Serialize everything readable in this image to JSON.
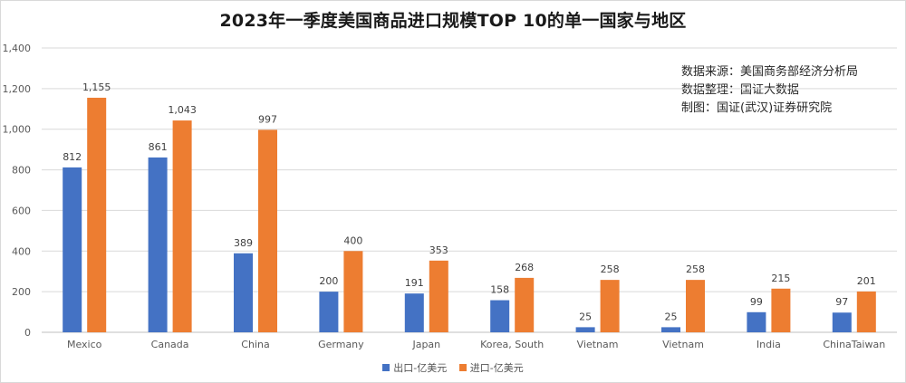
{
  "title": "2023年一季度美国商品进口规模TOP 10的单一国家与地区",
  "source_lines": [
    "数据来源：美国商务部经济分析局",
    "数据整理：国证大数据",
    "制图：国证(武汉)证券研究院"
  ],
  "colors": {
    "export": "#4472c4",
    "import": "#ed7d31"
  },
  "chart_data": {
    "type": "bar",
    "categories": [
      "Mexico",
      "Canada",
      "China",
      "Germany",
      "Japan",
      "Korea, South",
      "Vietnam",
      "Vietnam",
      "India",
      "ChinaTaiwan"
    ],
    "series": [
      {
        "name": "出口-亿美元",
        "values": [
          812,
          861,
          389,
          200,
          191,
          158,
          25,
          25,
          99,
          97
        ]
      },
      {
        "name": "进口-亿美元",
        "values": [
          1155,
          1043,
          997,
          400,
          353,
          268,
          258,
          258,
          215,
          201
        ]
      }
    ],
    "data_labels": [
      [
        "812",
        "861",
        "389",
        "200",
        "191",
        "158",
        "25",
        "25",
        "99",
        "97"
      ],
      [
        "1,155",
        "1,043",
        "997",
        "400",
        "353",
        "268",
        "258",
        "258",
        "215",
        "201"
      ]
    ],
    "ylim": [
      0,
      1400
    ],
    "y_ticks": [
      "0",
      "200",
      "400",
      "600",
      "800",
      "1,000",
      "1,200",
      "1,400"
    ],
    "grid": true,
    "legend_position": "bottom"
  }
}
